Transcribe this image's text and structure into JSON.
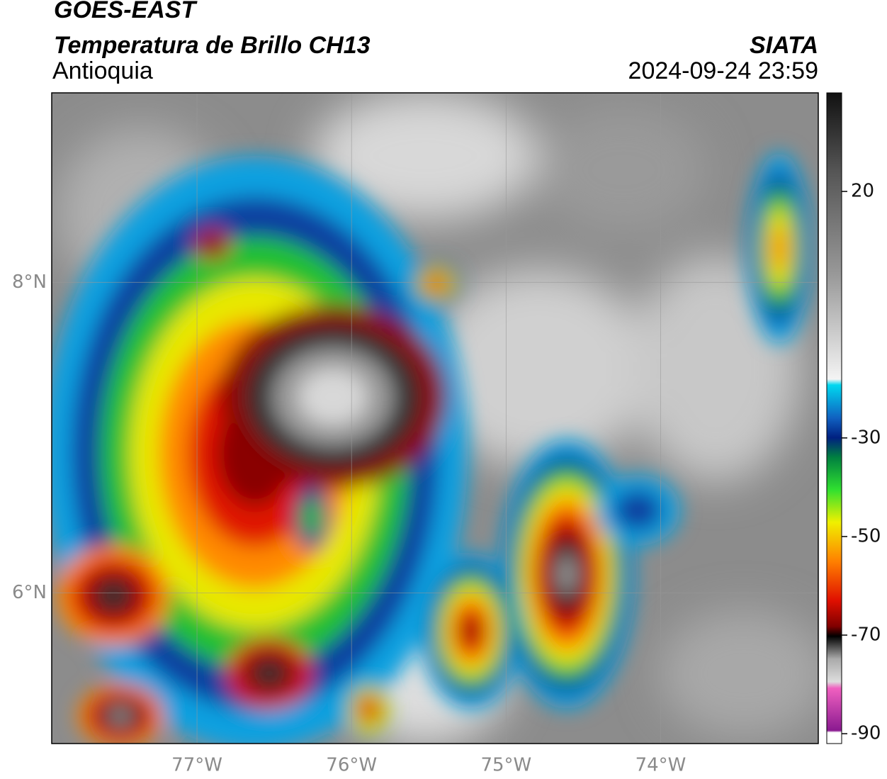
{
  "header": {
    "title": "GOES-EAST",
    "subtitle": "Temperatura de Brillo CH13",
    "region": "Antioquia",
    "source": "SIATA",
    "datetime": "2024-09-24 23:59"
  },
  "map": {
    "xlim": [
      -77.94,
      -72.98
    ],
    "ylim": [
      5.03,
      9.22
    ],
    "xticks": [
      {
        "value": -77,
        "label": "77°W"
      },
      {
        "value": -76,
        "label": "76°W"
      },
      {
        "value": -75,
        "label": "75°W"
      },
      {
        "value": -74,
        "label": "74°W"
      }
    ],
    "yticks": [
      {
        "value": 8,
        "label": "8°N"
      },
      {
        "value": 6,
        "label": "6°N"
      }
    ],
    "grid": true
  },
  "colorbar": {
    "lim": [
      -92,
      40
    ],
    "ticks": [
      20,
      -30,
      -50,
      -70,
      -90
    ]
  }
}
